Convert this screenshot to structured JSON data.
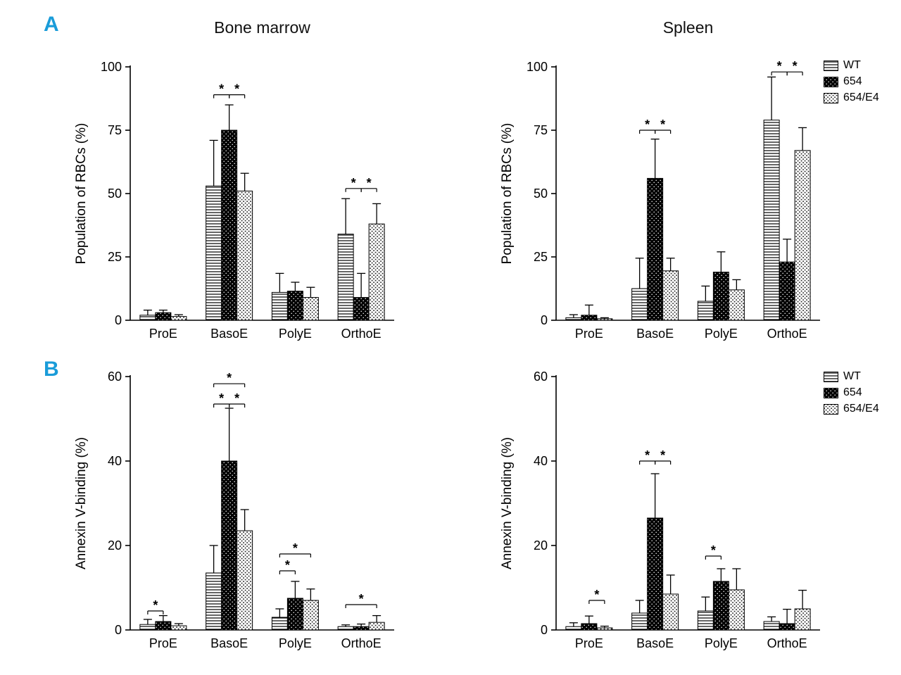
{
  "figure": {
    "panel_a_label": "A",
    "panel_b_label": "B",
    "panel_label_color": "#1a9cd9",
    "column_titles": [
      "Bone marrow",
      "Spleen"
    ]
  },
  "legend": {
    "entries": [
      {
        "label": "WT",
        "pattern": "hlines"
      },
      {
        "label": "654",
        "pattern": "black-dots"
      },
      {
        "label": "654/E4",
        "pattern": "stipple"
      }
    ]
  },
  "chart_data": [
    {
      "type": "bar",
      "panel": "A",
      "title": "Bone marrow",
      "ylabel": "Population of RBCs (%)",
      "ylim": [
        0,
        100
      ],
      "yticks": [
        0,
        25,
        50,
        75,
        100
      ],
      "categories": [
        "ProE",
        "BasoE",
        "PolyE",
        "OrthoE"
      ],
      "series": [
        {
          "name": "WT",
          "values": [
            2,
            53,
            11,
            34
          ],
          "errors": [
            2,
            18,
            7.5,
            14
          ]
        },
        {
          "name": "654",
          "values": [
            3,
            75,
            11.5,
            9
          ],
          "errors": [
            1,
            10,
            3.5,
            9.5
          ]
        },
        {
          "name": "654/E4",
          "values": [
            1.5,
            51,
            9,
            38
          ],
          "errors": [
            0.7,
            7,
            4,
            8
          ]
        }
      ],
      "significance": [
        {
          "category": "BasoE",
          "between": [
            "WT",
            "654"
          ],
          "y": 89,
          "label": "*"
        },
        {
          "category": "BasoE",
          "between": [
            "654",
            "654/E4"
          ],
          "y": 89,
          "label": "*"
        },
        {
          "category": "OrthoE",
          "between": [
            "WT",
            "654"
          ],
          "y": 52,
          "label": "*"
        },
        {
          "category": "OrthoE",
          "between": [
            "654",
            "654/E4"
          ],
          "y": 52,
          "label": "*"
        }
      ],
      "show_legend": false
    },
    {
      "type": "bar",
      "panel": "A",
      "title": "Spleen",
      "ylabel": "Population of RBCs (%)",
      "ylim": [
        0,
        100
      ],
      "yticks": [
        0,
        25,
        50,
        75,
        100
      ],
      "categories": [
        "ProE",
        "BasoE",
        "PolyE",
        "OrthoE"
      ],
      "series": [
        {
          "name": "WT",
          "values": [
            1,
            12.5,
            7.5,
            79
          ],
          "errors": [
            1.2,
            12,
            6,
            17
          ]
        },
        {
          "name": "654",
          "values": [
            2,
            56,
            19,
            23
          ],
          "errors": [
            4,
            15.5,
            8,
            9
          ]
        },
        {
          "name": "654/E4",
          "values": [
            0.6,
            19.5,
            12,
            67
          ],
          "errors": [
            0.4,
            5,
            4,
            9
          ]
        }
      ],
      "significance": [
        {
          "category": "BasoE",
          "between": [
            "WT",
            "654"
          ],
          "y": 75,
          "label": "*"
        },
        {
          "category": "BasoE",
          "between": [
            "654",
            "654/E4"
          ],
          "y": 75,
          "label": "*"
        },
        {
          "category": "OrthoE",
          "between": [
            "WT",
            "654"
          ],
          "y": 98,
          "label": "*"
        },
        {
          "category": "OrthoE",
          "between": [
            "654",
            "654/E4"
          ],
          "y": 98,
          "label": "*"
        }
      ],
      "show_legend": true
    },
    {
      "type": "bar",
      "panel": "B",
      "title": "",
      "ylabel": "Annexin V-binding (%)",
      "ylim": [
        0,
        60
      ],
      "yticks": [
        0,
        20,
        40,
        60
      ],
      "categories": [
        "ProE",
        "BasoE",
        "PolyE",
        "OrthoE"
      ],
      "series": [
        {
          "name": "WT",
          "values": [
            1.3,
            13.5,
            3,
            0.8
          ],
          "errors": [
            1.2,
            6.5,
            2,
            0.4
          ]
        },
        {
          "name": "654",
          "values": [
            2,
            40,
            7.5,
            0.8
          ],
          "errors": [
            1.4,
            12.5,
            4,
            0.6
          ]
        },
        {
          "name": "654/E4",
          "values": [
            1,
            23.5,
            7,
            1.8
          ],
          "errors": [
            0.5,
            5,
            2.7,
            1.6
          ]
        }
      ],
      "significance": [
        {
          "category": "ProE",
          "between": [
            "WT",
            "654"
          ],
          "y": 4.5,
          "label": "*"
        },
        {
          "category": "BasoE",
          "between": [
            "WT",
            "654"
          ],
          "y": 53.5,
          "label": "*"
        },
        {
          "category": "BasoE",
          "between": [
            "654",
            "654/E4"
          ],
          "y": 53.5,
          "label": "*"
        },
        {
          "category": "BasoE",
          "between": [
            "WT",
            "654/E4"
          ],
          "y": 58.3,
          "label": "*"
        },
        {
          "category": "PolyE",
          "between": [
            "WT",
            "654"
          ],
          "y": 14,
          "label": "*"
        },
        {
          "category": "PolyE",
          "between": [
            "WT",
            "654/E4"
          ],
          "y": 18,
          "label": "*"
        },
        {
          "category": "OrthoE",
          "between": [
            "WT",
            "654/E4"
          ],
          "y": 6,
          "label": "*"
        }
      ],
      "show_legend": false
    },
    {
      "type": "bar",
      "panel": "B",
      "title": "",
      "ylabel": "Annexin V-binding (%)",
      "ylim": [
        0,
        60
      ],
      "yticks": [
        0,
        20,
        40,
        60
      ],
      "categories": [
        "ProE",
        "BasoE",
        "PolyE",
        "OrthoE"
      ],
      "series": [
        {
          "name": "WT",
          "values": [
            0.8,
            4,
            4.5,
            2
          ],
          "errors": [
            0.9,
            3,
            3.3,
            1.1
          ]
        },
        {
          "name": "654",
          "values": [
            1.5,
            26.5,
            11.5,
            1.5
          ],
          "errors": [
            1.8,
            10.5,
            3,
            3.4
          ]
        },
        {
          "name": "654/E4",
          "values": [
            0.5,
            8.5,
            9.5,
            5
          ],
          "errors": [
            0.4,
            4.5,
            5,
            4.4
          ]
        }
      ],
      "significance": [
        {
          "category": "ProE",
          "between": [
            "654",
            "654/E4"
          ],
          "y": 7,
          "label": "*"
        },
        {
          "category": "BasoE",
          "between": [
            "WT",
            "654"
          ],
          "y": 40,
          "label": "*"
        },
        {
          "category": "BasoE",
          "between": [
            "654",
            "654/E4"
          ],
          "y": 40,
          "label": "*"
        },
        {
          "category": "PolyE",
          "between": [
            "WT",
            "654"
          ],
          "y": 17.5,
          "label": "*"
        }
      ],
      "show_legend": true
    }
  ]
}
